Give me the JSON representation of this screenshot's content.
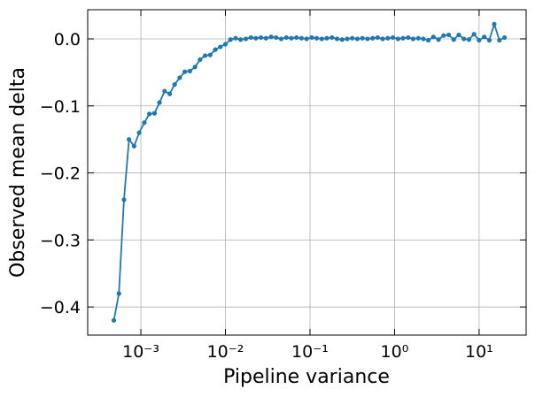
{
  "chart_data": {
    "type": "line",
    "xlabel": "Pipeline variance",
    "ylabel": "Observed mean delta",
    "xscale": "log",
    "grid": true,
    "xlim": [
      0.000235,
      36
    ],
    "ylim": [
      -0.442,
      0.0435
    ],
    "xticks": [
      {
        "value": 0.001,
        "label": "10⁻³"
      },
      {
        "value": 0.01,
        "label": "10⁻²"
      },
      {
        "value": 0.1,
        "label": "10⁻¹"
      },
      {
        "value": 1,
        "label": "10⁰"
      },
      {
        "value": 10,
        "label": "10¹"
      }
    ],
    "yticks": [
      {
        "value": -0.4,
        "label": "−0.4"
      },
      {
        "value": -0.3,
        "label": "−0.3"
      },
      {
        "value": -0.2,
        "label": "−0.2"
      },
      {
        "value": -0.1,
        "label": "−0.1"
      },
      {
        "value": 0,
        "label": "0.0"
      }
    ],
    "x": [
      0.000479,
      0.00055,
      0.000631,
      0.000724,
      0.000832,
      0.000955,
      0.0011,
      0.00126,
      0.00145,
      0.00166,
      0.00191,
      0.00219,
      0.00251,
      0.00288,
      0.00331,
      0.0038,
      0.00437,
      0.00501,
      0.00575,
      0.00661,
      0.00759,
      0.00871,
      0.01,
      0.0115,
      0.0132,
      0.0151,
      0.0174,
      0.02,
      0.0229,
      0.0263,
      0.0302,
      0.0347,
      0.0398,
      0.0457,
      0.0525,
      0.0603,
      0.0692,
      0.0794,
      0.0912,
      0.105,
      0.12,
      0.138,
      0.158,
      0.182,
      0.209,
      0.24,
      0.275,
      0.316,
      0.363,
      0.417,
      0.479,
      0.55,
      0.631,
      0.724,
      0.832,
      0.955,
      1.1,
      1.26,
      1.45,
      1.66,
      1.91,
      2.19,
      2.51,
      2.88,
      3.31,
      3.8,
      4.37,
      5.01,
      5.75,
      6.61,
      7.59,
      8.71,
      10,
      11.5,
      13.2,
      15.1,
      17.4,
      20
    ],
    "series": [
      {
        "color": "#1f77b4",
        "values": [
          -0.42,
          -0.38,
          -0.24,
          -0.15,
          -0.16,
          -0.14,
          -0.125,
          -0.112,
          -0.111,
          -0.095,
          -0.078,
          -0.082,
          -0.068,
          -0.058,
          -0.049,
          -0.048,
          -0.042,
          -0.031,
          -0.025,
          -0.024,
          -0.016,
          -0.012,
          -0.008,
          -0.001,
          0.001,
          -0.001,
          0.0,
          0.002,
          0.001,
          0.002,
          0.001,
          0.003,
          0.002,
          0.0,
          0.002,
          0.001,
          0.002,
          0.001,
          0.0,
          0.002,
          0.001,
          0.0,
          0.001,
          0.002,
          0.0,
          -0.001,
          0.0,
          0.001,
          0.0,
          0.001,
          0.0,
          0.001,
          0.002,
          0.0,
          0.001,
          0.002,
          0.0,
          0.001,
          0.002,
          0.0,
          0.001,
          0.0,
          -0.002,
          0.003,
          -0.001,
          0.005,
          0.006,
          -0.001,
          0.006,
          0.0,
          -0.001,
          0.007,
          -0.002,
          0.003,
          -0.002,
          0.022,
          -0.002,
          0.002
        ]
      }
    ]
  }
}
